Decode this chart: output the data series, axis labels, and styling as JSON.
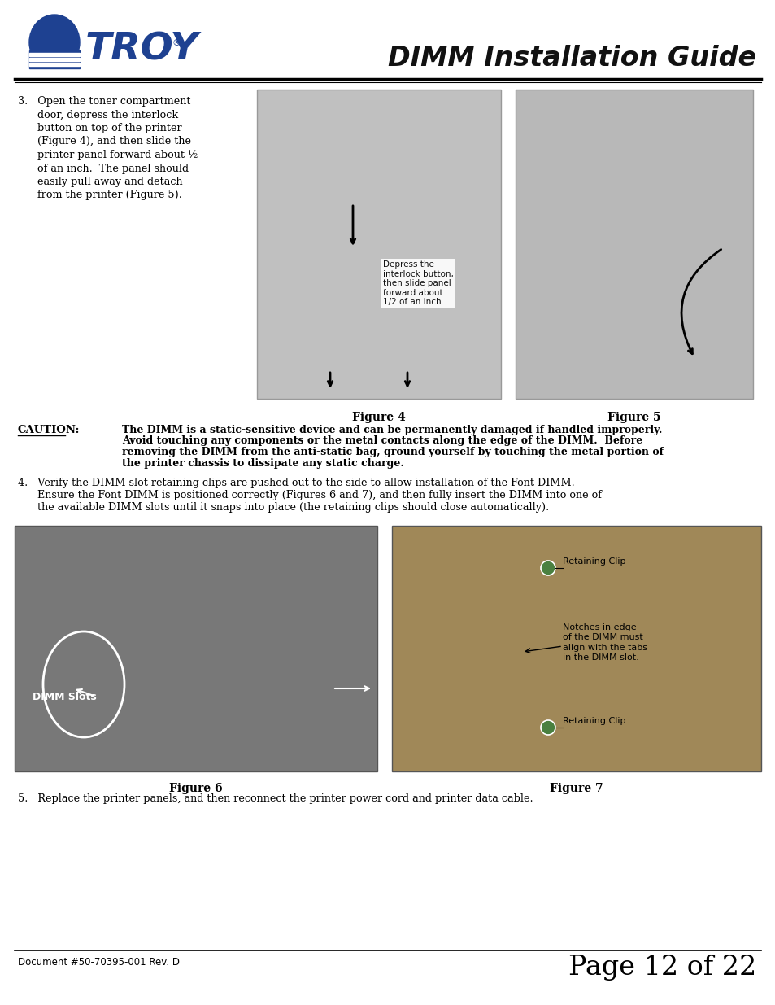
{
  "page_bg": "#ffffff",
  "troy_blue": "#1e4191",
  "title_text": "DIMM Installation Guide",
  "footer_left": "Document #50-70395-001 Rev. D",
  "footer_right": "Page 12 of 22",
  "figure4_label": "Figure 4",
  "figure5_label": "Figure 5",
  "figure6_label": "Figure 6",
  "figure7_label": "Figure 7",
  "fig4_annotation": "Depress the\ninterlock button,\nthen slide panel\nforward about\n1/2 of an inch.",
  "fig6_annotation_left": "DIMM Slots",
  "fig7_annotation1": "Retaining Clip",
  "fig7_annotation2": "Notches in edge\nof the DIMM must\nalign with the tabs\nin the DIMM slot.",
  "fig7_annotation3": "Retaining Clip",
  "caution_label": "CAUTION:",
  "caution_lines": [
    "The DIMM is a static-sensitive device and can be permanently damaged if handled improperly.",
    "Avoid touching any components or the metal contacts along the edge of the DIMM.  Before",
    "removing the DIMM from the anti-static bag, ground yourself by touching the metal portion of",
    "the printer chassis to dissipate any static charge."
  ],
  "step3_lines": [
    "3.   Open the toner compartment",
    "      door, depress the interlock",
    "      button on top of the printer",
    "      (Figure 4), and then slide the",
    "      printer panel forward about ½",
    "      of an inch.  The panel should",
    "      easily pull away and detach",
    "      from the printer (Figure 5)."
  ],
  "step4_lines": [
    "4.   Verify the DIMM slot retaining clips are pushed out to the side to allow installation of the Font DIMM.",
    "      Ensure the Font DIMM is positioned correctly (Figures 6 and 7), and then fully insert the DIMM into one of",
    "      the available DIMM slots until it snaps into place (the retaining clips should close automatically)."
  ],
  "step5_line": "5.   Replace the printer panels, and then reconnect the printer power cord and printer data cable."
}
